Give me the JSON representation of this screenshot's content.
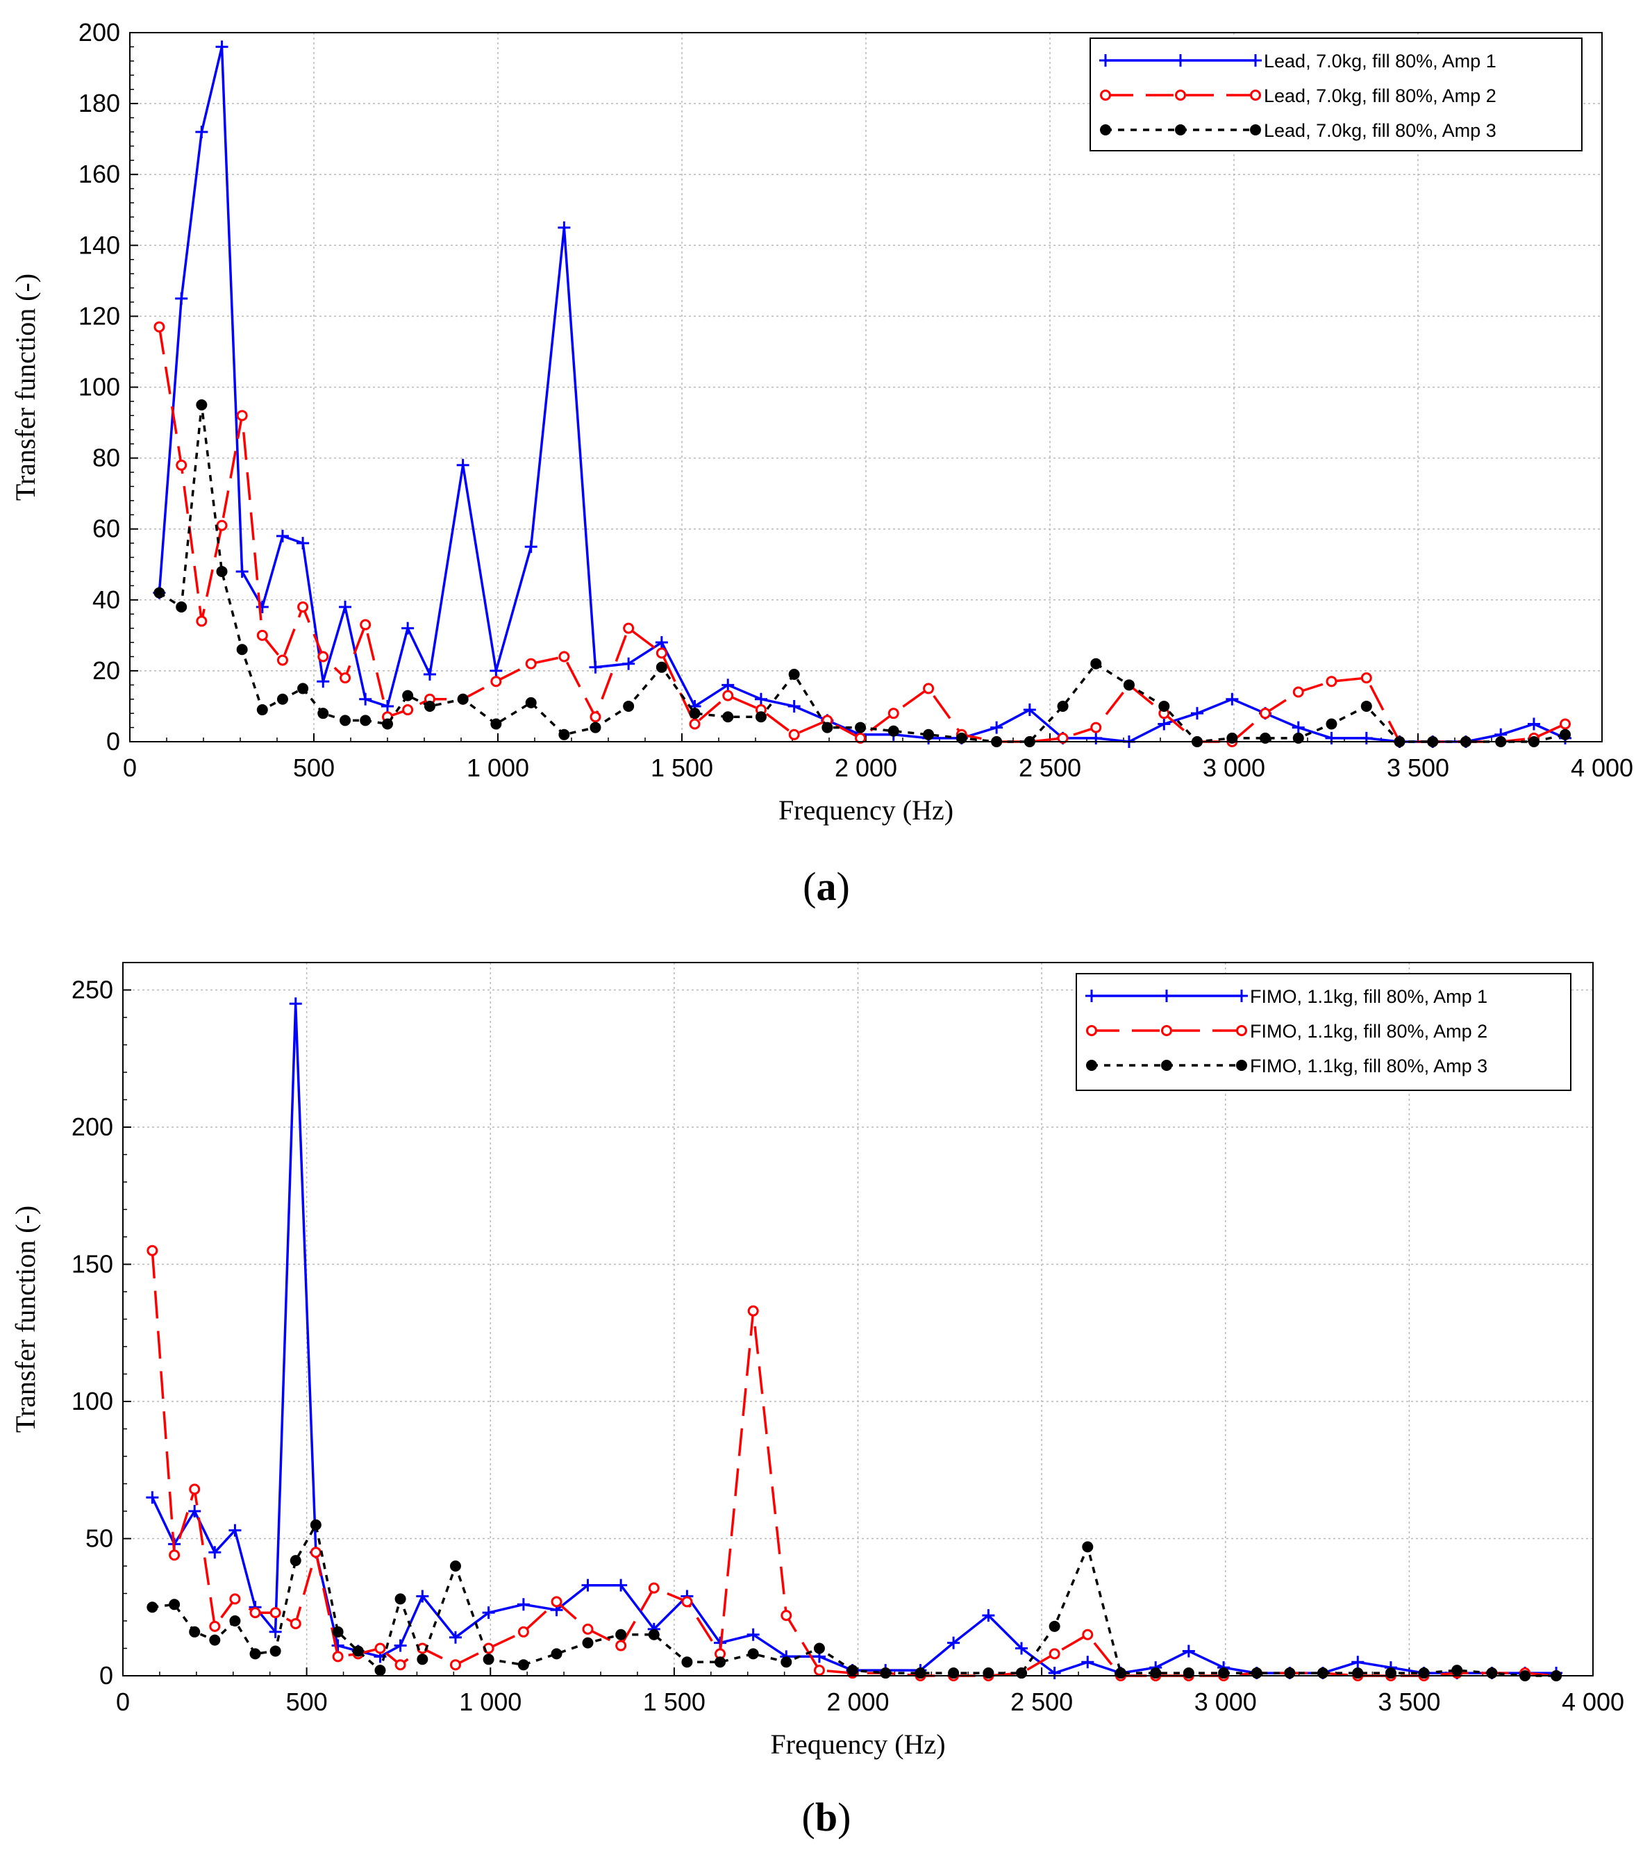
{
  "chart_data": [
    {
      "id": "a",
      "type": "line",
      "panel_label": "(a)",
      "panel_letter": "a",
      "xlabel": "Frequency (Hz)",
      "ylabel": "Transfer function (-)",
      "xlim": [
        0,
        4000
      ],
      "ylim": [
        0,
        200
      ],
      "xticks": [
        0,
        500,
        1000,
        1500,
        2000,
        2500,
        3000,
        3500,
        4000
      ],
      "xtick_labels": [
        "0",
        "500",
        "1 000",
        "1 500",
        "2 000",
        "2 500",
        "3 000",
        "3 500",
        "4 000"
      ],
      "yticks": [
        0,
        20,
        40,
        60,
        80,
        100,
        120,
        140,
        160,
        180,
        200
      ],
      "ytick_labels": [
        "0",
        "20",
        "40",
        "60",
        "80",
        "100",
        "120",
        "140",
        "160",
        "180",
        "200"
      ],
      "grid": true,
      "legend_position": "top-right",
      "series": [
        {
          "name": "Lead, 7.0kg, fill 80%, Amp 1",
          "color": "#0000ff",
          "dash": "solid",
          "marker": "plus",
          "x": [
            80,
            140,
            195,
            250,
            305,
            360,
            415,
            470,
            525,
            585,
            640,
            700,
            755,
            815,
            905,
            995,
            1090,
            1180,
            1265,
            1355,
            1445,
            1535,
            1625,
            1715,
            1805,
            1895,
            1985,
            2075,
            2170,
            2260,
            2355,
            2445,
            2535,
            2625,
            2715,
            2810,
            2900,
            2995,
            3085,
            3175,
            3265,
            3360,
            3450,
            3540,
            3630,
            3725,
            3815,
            3900
          ],
          "y": [
            42,
            125,
            172,
            196,
            48,
            38,
            58,
            56,
            17,
            38,
            12,
            10,
            32,
            19,
            78,
            20,
            55,
            145,
            21,
            22,
            28,
            10,
            16,
            12,
            10,
            6,
            2,
            2,
            1,
            1,
            4,
            9,
            1,
            1,
            0,
            5,
            8,
            12,
            8,
            4,
            1,
            1,
            0,
            0,
            0,
            2,
            5,
            1
          ]
        },
        {
          "name": "Lead, 7.0kg, fill 80%, Amp 2",
          "color": "#ff0000",
          "dash": "dashed",
          "marker": "circle-open",
          "x": [
            80,
            140,
            195,
            250,
            305,
            360,
            415,
            470,
            525,
            585,
            640,
            700,
            755,
            815,
            905,
            995,
            1090,
            1180,
            1265,
            1355,
            1445,
            1535,
            1625,
            1715,
            1805,
            1895,
            1985,
            2075,
            2170,
            2260,
            2355,
            2445,
            2535,
            2625,
            2715,
            2810,
            2900,
            2995,
            3085,
            3175,
            3265,
            3360,
            3450,
            3540,
            3630,
            3725,
            3815,
            3900
          ],
          "y": [
            117,
            78,
            34,
            61,
            92,
            30,
            23,
            38,
            24,
            18,
            33,
            7,
            9,
            12,
            12,
            17,
            22,
            24,
            7,
            32,
            25,
            5,
            13,
            9,
            2,
            6,
            1,
            8,
            15,
            2,
            0,
            0,
            1,
            4,
            16,
            8,
            0,
            0,
            8,
            14,
            17,
            18,
            0,
            0,
            0,
            0,
            1,
            5
          ]
        },
        {
          "name": "Lead, 7.0kg, fill 80%, Amp 3",
          "color": "#000000",
          "dash": "dotted",
          "marker": "circle-filled",
          "x": [
            80,
            140,
            195,
            250,
            305,
            360,
            415,
            470,
            525,
            585,
            640,
            700,
            755,
            815,
            905,
            995,
            1090,
            1180,
            1265,
            1355,
            1445,
            1535,
            1625,
            1715,
            1805,
            1895,
            1985,
            2075,
            2170,
            2260,
            2355,
            2445,
            2535,
            2625,
            2715,
            2810,
            2900,
            2995,
            3085,
            3175,
            3265,
            3360,
            3450,
            3540,
            3630,
            3725,
            3815,
            3900
          ],
          "y": [
            42,
            38,
            95,
            48,
            26,
            9,
            12,
            15,
            8,
            6,
            6,
            5,
            13,
            10,
            12,
            5,
            11,
            2,
            4,
            10,
            21,
            8,
            7,
            7,
            19,
            4,
            4,
            3,
            2,
            1,
            0,
            0,
            10,
            22,
            16,
            10,
            0,
            1,
            1,
            1,
            5,
            10,
            0,
            0,
            0,
            0,
            0,
            2
          ]
        }
      ]
    },
    {
      "id": "b",
      "type": "line",
      "panel_label": "(b)",
      "panel_letter": "b",
      "xlabel": "Frequency (Hz)",
      "ylabel": "Transfer function (-)",
      "xlim": [
        0,
        4000
      ],
      "ylim": [
        0,
        260
      ],
      "xticks": [
        0,
        500,
        1000,
        1500,
        2000,
        2500,
        3000,
        3500,
        4000
      ],
      "xtick_labels": [
        "0",
        "500",
        "1 000",
        "1 500",
        "2 000",
        "2 500",
        "3 000",
        "3 500",
        "4 000"
      ],
      "yticks": [
        0,
        50,
        100,
        150,
        200,
        250
      ],
      "ytick_labels": [
        "0",
        "50",
        "100",
        "150",
        "200",
        "250"
      ],
      "grid": true,
      "legend_position": "top-right",
      "series": [
        {
          "name": "FIMO, 1.1kg, fill 80%, Amp 1",
          "color": "#0000ff",
          "dash": "solid",
          "marker": "plus",
          "x": [
            80,
            140,
            195,
            250,
            305,
            360,
            415,
            470,
            525,
            585,
            640,
            700,
            755,
            815,
            905,
            995,
            1090,
            1180,
            1265,
            1355,
            1445,
            1535,
            1625,
            1715,
            1805,
            1895,
            1985,
            2075,
            2170,
            2260,
            2355,
            2445,
            2535,
            2625,
            2715,
            2810,
            2900,
            2995,
            3085,
            3175,
            3265,
            3360,
            3450,
            3540,
            3630,
            3725,
            3815,
            3900
          ],
          "y": [
            65,
            48,
            60,
            45,
            53,
            25,
            16,
            245,
            45,
            11,
            9,
            7,
            11,
            29,
            14,
            23,
            26,
            24,
            33,
            33,
            17,
            29,
            12,
            15,
            7,
            7,
            2,
            2,
            2,
            12,
            22,
            10,
            1,
            5,
            1,
            3,
            9,
            3,
            1,
            1,
            1,
            5,
            3,
            1,
            1,
            1,
            1,
            1
          ]
        },
        {
          "name": "FIMO, 1.1kg, fill 80%, Amp 2",
          "color": "#ff0000",
          "dash": "dashed",
          "marker": "circle-open",
          "x": [
            80,
            140,
            195,
            250,
            305,
            360,
            415,
            470,
            525,
            585,
            640,
            700,
            755,
            815,
            905,
            995,
            1090,
            1180,
            1265,
            1355,
            1445,
            1535,
            1625,
            1715,
            1805,
            1895,
            1985,
            2075,
            2170,
            2260,
            2355,
            2445,
            2535,
            2625,
            2715,
            2810,
            2900,
            2995,
            3085,
            3175,
            3265,
            3360,
            3450,
            3540,
            3630,
            3725,
            3815,
            3900
          ],
          "y": [
            155,
            44,
            68,
            18,
            28,
            23,
            23,
            19,
            45,
            7,
            8,
            10,
            4,
            10,
            4,
            10,
            16,
            27,
            17,
            11,
            32,
            27,
            8,
            133,
            22,
            2,
            1,
            1,
            0,
            0,
            0,
            1,
            8,
            15,
            0,
            0,
            0,
            0,
            1,
            1,
            1,
            0,
            0,
            0,
            1,
            1,
            1,
            0
          ]
        },
        {
          "name": "FIMO, 1.1kg, fill 80%, Amp 3",
          "color": "#000000",
          "dash": "dotted",
          "marker": "circle-filled",
          "x": [
            80,
            140,
            195,
            250,
            305,
            360,
            415,
            470,
            525,
            585,
            640,
            700,
            755,
            815,
            905,
            995,
            1090,
            1180,
            1265,
            1355,
            1445,
            1535,
            1625,
            1715,
            1805,
            1895,
            1985,
            2075,
            2170,
            2260,
            2355,
            2445,
            2535,
            2625,
            2715,
            2810,
            2900,
            2995,
            3085,
            3175,
            3265,
            3360,
            3450,
            3540,
            3630,
            3725,
            3815,
            3900
          ],
          "y": [
            25,
            26,
            16,
            13,
            20,
            8,
            9,
            42,
            55,
            16,
            9,
            2,
            28,
            6,
            40,
            6,
            4,
            8,
            12,
            15,
            15,
            5,
            5,
            8,
            5,
            10,
            2,
            1,
            1,
            1,
            1,
            1,
            18,
            47,
            1,
            1,
            1,
            1,
            1,
            1,
            1,
            1,
            1,
            1,
            2,
            1,
            0,
            0
          ]
        }
      ]
    }
  ]
}
